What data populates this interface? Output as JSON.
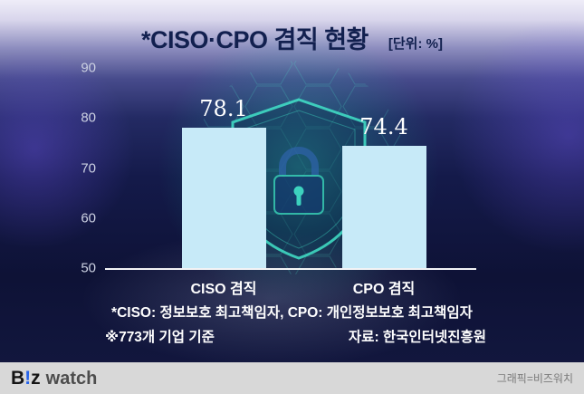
{
  "header": {
    "title": "*CISO·CPO 겸직 현황",
    "unit_label": "[단위: %]"
  },
  "chart_data": {
    "type": "bar",
    "title": "*CISO·CPO 겸직 현황",
    "unit": "%",
    "categories": [
      "CISO 겸직",
      "CPO 겸직"
    ],
    "values": [
      78.1,
      74.4
    ],
    "ylim": [
      50,
      90
    ],
    "yticks": [
      90,
      80,
      70,
      60,
      50
    ],
    "bar_color": "#c7eaf8",
    "grid": false,
    "legend": false,
    "baseline_color": "#ffffff"
  },
  "footnotes": {
    "definition": "*CISO: 정보보호 최고책임자, CPO: 개인정보보호 최고책임자",
    "basis": "※773개 기업 기준",
    "source": "자료: 한국인터넷진흥원"
  },
  "footer": {
    "logo_b": "B",
    "logo_exclaim": "!",
    "logo_z": "z",
    "logo_watch": "watch",
    "credit": "그래픽=비즈워치"
  },
  "colors": {
    "bar": "#c7eaf8",
    "title_navy": "#12204f",
    "accent_teal": "#41e2c8",
    "logo_blue": "#2563eb"
  }
}
